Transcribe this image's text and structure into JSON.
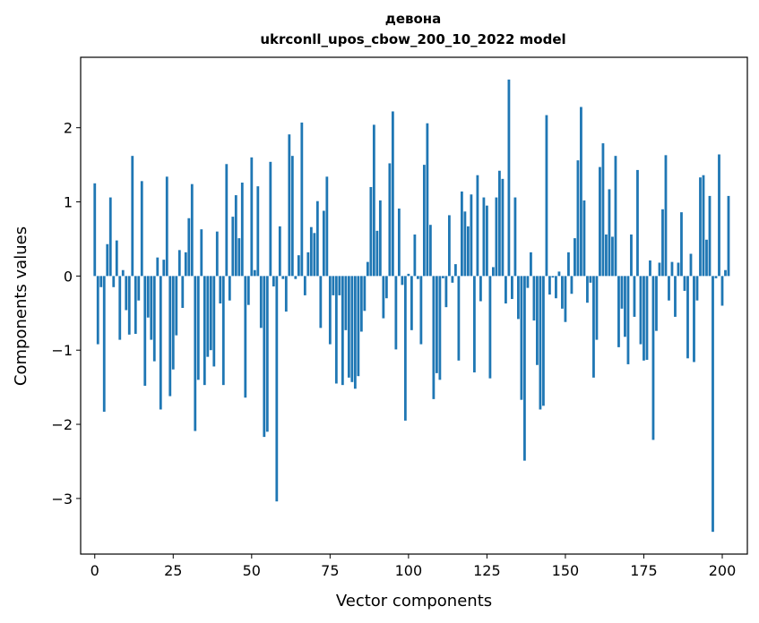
{
  "chart_data": {
    "type": "bar",
    "title": "девона",
    "subtitle": "ukrconll_upos_cbow_200_10_2022 model",
    "xlabel": "Vector components",
    "ylabel": "Components values",
    "xlim": [
      -4.5,
      208
    ],
    "ylim": [
      -3.75,
      2.95
    ],
    "xticks": [
      0,
      25,
      50,
      75,
      100,
      125,
      150,
      175,
      200
    ],
    "yticks": [
      -3,
      -2,
      -1,
      0,
      1,
      2
    ],
    "ytick_labels": [
      "−3",
      "−2",
      "−1",
      "0",
      "1",
      "2"
    ],
    "bar_color": "#1f77b4",
    "grid": false,
    "values": [
      1.25,
      -0.92,
      -0.15,
      -1.83,
      0.43,
      1.06,
      -0.15,
      0.48,
      -0.86,
      0.08,
      -0.46,
      -0.79,
      1.62,
      -0.78,
      -0.33,
      1.28,
      -1.48,
      -0.56,
      -0.86,
      -1.15,
      0.25,
      -1.8,
      0.22,
      1.34,
      -1.62,
      -1.26,
      -0.8,
      0.35,
      -0.43,
      0.32,
      0.78,
      1.24,
      -2.09,
      -1.4,
      0.63,
      -1.47,
      -1.09,
      -1.0,
      -1.22,
      0.6,
      -0.37,
      -1.47,
      1.51,
      -0.33,
      0.8,
      1.09,
      0.51,
      1.26,
      -1.64,
      -0.39,
      1.6,
      0.08,
      1.21,
      -0.7,
      -2.17,
      -2.1,
      1.54,
      -0.14,
      -3.04,
      0.67,
      -0.04,
      -0.48,
      1.91,
      1.62,
      -0.04,
      0.28,
      2.07,
      -0.26,
      0.32,
      0.66,
      0.58,
      1.01,
      -0.7,
      0.88,
      1.34,
      -0.92,
      -0.26,
      -1.45,
      -0.26,
      -1.47,
      -0.73,
      -1.37,
      -1.43,
      -1.52,
      -1.35,
      -0.75,
      -0.47,
      0.19,
      1.2,
      2.04,
      0.61,
      1.02,
      -0.57,
      -0.3,
      1.52,
      2.22,
      -0.99,
      0.91,
      -0.12,
      -1.95,
      0.03,
      -0.73,
      0.56,
      -0.04,
      -0.92,
      1.5,
      2.06,
      0.69,
      -1.66,
      -1.31,
      -1.4,
      -0.03,
      -0.42,
      0.82,
      -0.09,
      0.16,
      -1.14,
      1.14,
      0.87,
      0.67,
      1.1,
      -1.3,
      1.36,
      -0.34,
      1.06,
      0.95,
      -1.38,
      0.12,
      1.06,
      1.42,
      1.31,
      -0.37,
      2.65,
      -0.31,
      1.06,
      -0.58,
      -1.67,
      -2.49,
      -0.16,
      0.32,
      -0.6,
      -1.2,
      -1.8,
      -1.75,
      2.17,
      -0.25,
      -0.02,
      -0.3,
      0.06,
      -0.44,
      -0.62,
      0.32,
      -0.24,
      0.51,
      1.56,
      2.28,
      1.02,
      -0.36,
      -0.09,
      -1.37,
      -0.86,
      1.47,
      1.79,
      0.56,
      1.17,
      0.53,
      1.62,
      -0.96,
      -0.44,
      -0.82,
      -1.19,
      0.56,
      -0.55,
      1.43,
      -0.92,
      -1.14,
      -1.13,
      0.21,
      -2.21,
      -0.74,
      0.18,
      0.9,
      1.63,
      -0.33,
      0.19,
      -0.55,
      0.18,
      0.86,
      -0.2,
      -1.11,
      0.3,
      -1.16,
      -0.33,
      1.33,
      1.36,
      0.49,
      1.08,
      -3.45,
      -0.03,
      1.64,
      -0.4,
      0.08,
      1.08
    ]
  }
}
